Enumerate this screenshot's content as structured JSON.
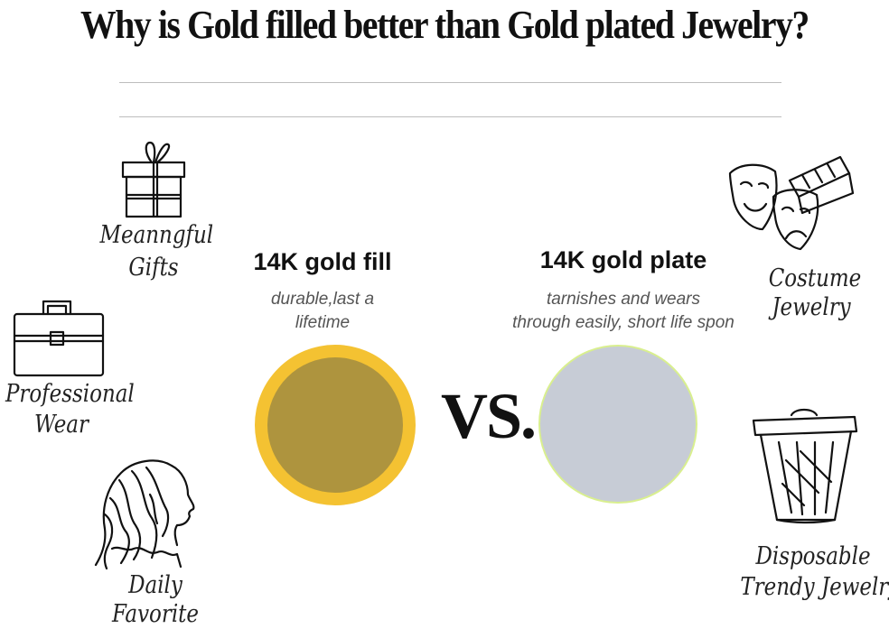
{
  "title": "Why is Gold filled better than Gold plated Jewelry?",
  "left_captions": {
    "gifts_line1": "Meanngful",
    "gifts_line2": "Gifts",
    "work_line1": "Professional",
    "work_line2": "Wear",
    "daily_line1": "Daily",
    "daily_line2": "Favorite"
  },
  "right_captions": {
    "costume_line1": "Costume",
    "costume_line2": "Jewelry",
    "disposable_line1": "Disposable",
    "disposable_line2": "Trendy Jewelry"
  },
  "gold_fill": {
    "heading": "14K gold fill",
    "desc_line1": "durable,last a",
    "desc_line2": "lifetime"
  },
  "gold_plate": {
    "heading": "14K gold plate",
    "desc_line1": "tarnishes and wears",
    "desc_line2": "through easily, short life spon"
  },
  "vs_label": "VS.",
  "colors": {
    "gold_ring": "#f4c232",
    "gold_core": "#ae943e",
    "plate_fill": "#c7ccd6",
    "plate_rim": "#d9ef8f"
  },
  "icons": [
    "gift-icon",
    "briefcase-icon",
    "woman-profile-icon",
    "theater-masks-icon",
    "trash-can-icon"
  ]
}
